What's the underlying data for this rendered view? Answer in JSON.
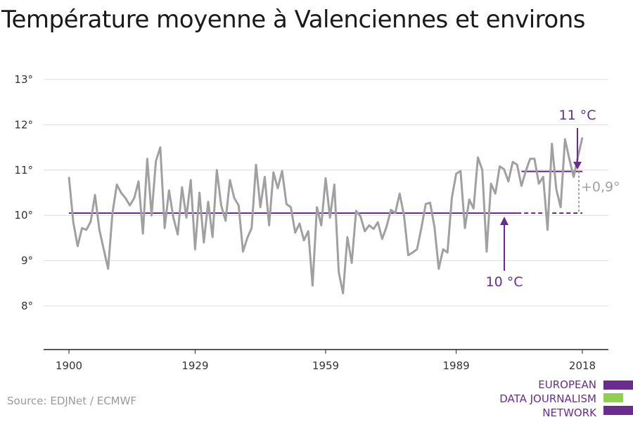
{
  "title": "Température moyenne à Valenciennes et environs",
  "source": "Source: EDJNet / ECMWF",
  "logo": {
    "lines": [
      "EUROPEAN",
      "DATA JOURNALISM",
      "NETWORK"
    ]
  },
  "colors": {
    "line": "#a0a0a0",
    "baseline": "#6a2c91",
    "recent": "#6a2c91",
    "diff": "#a0a0a0",
    "logo_green": "#8fd14f"
  },
  "chart_data": {
    "type": "line",
    "title": "Température moyenne à Valenciennes et environs",
    "xlabel": "",
    "ylabel": "",
    "xlim": [
      1900,
      2018
    ],
    "ylim": [
      7,
      13
    ],
    "grid": true,
    "x_ticks": [
      1900,
      1929,
      1959,
      1989,
      2018
    ],
    "x_tick_labels": [
      "1900",
      "1929",
      "1959",
      "1989",
      "2018"
    ],
    "y_ticks": [
      8,
      9,
      10,
      11,
      12,
      13
    ],
    "y_tick_labels": [
      "8°",
      "9°",
      "10°",
      "11°",
      "12°",
      "13°"
    ],
    "series": [
      {
        "x": [
          1900,
          1901,
          1902,
          1903,
          1904,
          1905,
          1906,
          1907,
          1908,
          1909,
          1910,
          1911,
          1912,
          1913,
          1914,
          1915,
          1916,
          1917,
          1918,
          1919,
          1920,
          1921,
          1922,
          1923,
          1924,
          1925,
          1926,
          1927,
          1928,
          1929,
          1930,
          1931,
          1932,
          1933,
          1934,
          1935,
          1936,
          1937,
          1938,
          1939,
          1940,
          1941,
          1942,
          1943,
          1944,
          1945,
          1946,
          1947,
          1948,
          1949,
          1950,
          1951,
          1952,
          1953,
          1954,
          1955,
          1956,
          1957,
          1958,
          1959,
          1960,
          1961,
          1962,
          1963,
          1964,
          1965,
          1966,
          1967,
          1968,
          1969,
          1970,
          1971,
          1972,
          1973,
          1974,
          1975,
          1976,
          1977,
          1978,
          1979,
          1980,
          1981,
          1982,
          1983,
          1984,
          1985,
          1986,
          1987,
          1988,
          1989,
          1990,
          1991,
          1992,
          1993,
          1994,
          1995,
          1996,
          1997,
          1998,
          1999,
          2000,
          2001,
          2002,
          2003,
          2004,
          2005,
          2006,
          2007,
          2008,
          2009,
          2010,
          2011,
          2012,
          2013,
          2014,
          2015,
          2016,
          2017,
          2018
        ],
        "values": [
          10.85,
          9.85,
          9.32,
          9.72,
          9.68,
          9.86,
          10.45,
          9.68,
          9.25,
          8.82,
          10.05,
          10.68,
          10.5,
          10.38,
          10.22,
          10.38,
          10.75,
          9.6,
          11.25,
          10.0,
          11.2,
          11.5,
          9.72,
          10.55,
          9.95,
          9.58,
          10.62,
          9.95,
          10.78,
          9.25,
          10.5,
          9.4,
          10.3,
          9.52,
          11.0,
          10.22,
          9.88,
          10.78,
          10.38,
          10.22,
          9.2,
          9.5,
          9.72,
          11.12,
          10.18,
          10.85,
          9.78,
          10.95,
          10.6,
          10.98,
          10.25,
          10.18,
          9.62,
          9.82,
          9.45,
          9.65,
          8.45,
          10.18,
          9.78,
          10.82,
          9.95,
          10.68,
          8.75,
          8.28,
          9.52,
          8.95,
          10.1,
          9.98,
          9.65,
          9.78,
          9.7,
          9.85,
          9.48,
          9.75,
          10.12,
          10.05,
          10.48,
          10.0,
          9.12,
          9.18,
          9.25,
          9.72,
          10.25,
          10.28,
          9.75,
          8.82,
          9.25,
          9.18,
          10.38,
          10.92,
          10.98,
          9.72,
          10.35,
          10.15,
          11.28,
          11.0,
          9.2,
          10.7,
          10.48,
          11.08,
          11.02,
          10.75,
          11.18,
          11.12,
          10.65,
          10.98,
          11.25,
          11.25,
          10.7,
          10.85,
          9.68,
          11.58,
          10.58,
          10.18,
          11.68,
          11.25,
          10.85,
          11.3,
          11.72
        ]
      }
    ],
    "baseline": {
      "value": 10.05,
      "x_start": 1900,
      "x_solid_end": 2003,
      "x_end": 2018
    },
    "recent": {
      "value": 10.97,
      "x_start": 2004,
      "x_end": 2018
    },
    "annotations": [
      {
        "text": "11 °C",
        "x": 2018,
        "y": 11.0
      },
      {
        "text": "10 °C",
        "x": 2003,
        "y": 10.05
      },
      {
        "text": "+0,9°",
        "x": 2018
      }
    ]
  }
}
